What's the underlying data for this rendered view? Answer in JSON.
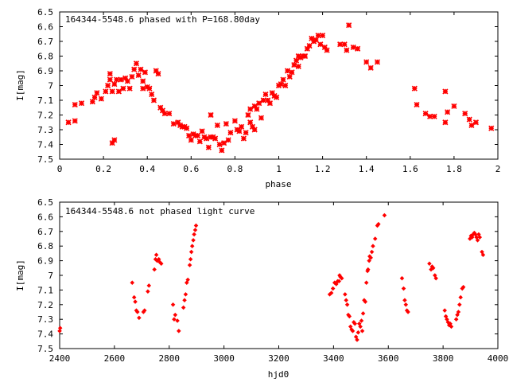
{
  "chart_data": [
    {
      "type": "scatter",
      "title": "164344-5548.6 phased with P=168.80day",
      "xlabel": "phase",
      "ylabel": "I[mag]",
      "xlim": [
        0,
        2
      ],
      "ylim": [
        7.5,
        6.5
      ],
      "y_inverted": true,
      "xticks": [
        "0",
        "0.2",
        "0.4",
        "0.6",
        "0.8",
        "1",
        "1.2",
        "1.4",
        "1.6",
        "1.8",
        "2"
      ],
      "yticks": [
        "6.5",
        "6.6",
        "6.7",
        "6.8",
        "6.9",
        "7",
        "7.1",
        "7.2",
        "7.3",
        "7.4",
        "7.5"
      ],
      "marker": "star",
      "color": "#ff0000",
      "points": [
        [
          0.04,
          7.25
        ],
        [
          0.07,
          7.13
        ],
        [
          0.07,
          7.24
        ],
        [
          0.1,
          7.12
        ],
        [
          0.15,
          7.11
        ],
        [
          0.16,
          7.08
        ],
        [
          0.17,
          7.05
        ],
        [
          0.19,
          7.09
        ],
        [
          0.21,
          7.04
        ],
        [
          0.22,
          7.0
        ],
        [
          0.23,
          6.92
        ],
        [
          0.23,
          6.96
        ],
        [
          0.24,
          7.04
        ],
        [
          0.24,
          7.39
        ],
        [
          0.25,
          7.37
        ],
        [
          0.25,
          6.99
        ],
        [
          0.26,
          6.96
        ],
        [
          0.27,
          7.04
        ],
        [
          0.28,
          6.96
        ],
        [
          0.29,
          7.02
        ],
        [
          0.3,
          6.95
        ],
        [
          0.31,
          6.97
        ],
        [
          0.32,
          7.02
        ],
        [
          0.33,
          6.94
        ],
        [
          0.34,
          6.89
        ],
        [
          0.35,
          6.85
        ],
        [
          0.36,
          6.93
        ],
        [
          0.37,
          6.89
        ],
        [
          0.38,
          6.97
        ],
        [
          0.38,
          7.02
        ],
        [
          0.39,
          6.91
        ],
        [
          0.4,
          7.01
        ],
        [
          0.41,
          7.02
        ],
        [
          0.42,
          7.06
        ],
        [
          0.43,
          7.1
        ],
        [
          0.44,
          6.9
        ],
        [
          0.45,
          6.92
        ],
        [
          0.46,
          7.15
        ],
        [
          0.47,
          7.17
        ],
        [
          0.48,
          7.19
        ],
        [
          0.5,
          7.19
        ],
        [
          0.52,
          7.26
        ],
        [
          0.54,
          7.25
        ],
        [
          0.55,
          7.27
        ],
        [
          0.56,
          7.28
        ],
        [
          0.57,
          7.28
        ],
        [
          0.58,
          7.29
        ],
        [
          0.59,
          7.34
        ],
        [
          0.6,
          7.37
        ],
        [
          0.61,
          7.33
        ],
        [
          0.62,
          7.34
        ],
        [
          0.63,
          7.34
        ],
        [
          0.64,
          7.38
        ],
        [
          0.65,
          7.31
        ],
        [
          0.66,
          7.35
        ],
        [
          0.67,
          7.36
        ],
        [
          0.68,
          7.42
        ],
        [
          0.69,
          7.35
        ],
        [
          0.69,
          7.2
        ],
        [
          0.7,
          7.35
        ],
        [
          0.71,
          7.36
        ],
        [
          0.72,
          7.27
        ],
        [
          0.73,
          7.4
        ],
        [
          0.74,
          7.44
        ],
        [
          0.75,
          7.39
        ],
        [
          0.76,
          7.26
        ],
        [
          0.77,
          7.37
        ],
        [
          0.78,
          7.32
        ],
        [
          0.8,
          7.24
        ],
        [
          0.81,
          7.3
        ],
        [
          0.82,
          7.31
        ],
        [
          0.83,
          7.28
        ],
        [
          0.84,
          7.36
        ],
        [
          0.85,
          7.32
        ],
        [
          0.86,
          7.2
        ],
        [
          0.87,
          7.25
        ],
        [
          0.87,
          7.16
        ],
        [
          0.88,
          7.28
        ],
        [
          0.89,
          7.3
        ],
        [
          0.89,
          7.14
        ],
        [
          0.9,
          7.16
        ],
        [
          0.91,
          7.12
        ],
        [
          0.92,
          7.22
        ],
        [
          0.93,
          7.1
        ],
        [
          0.94,
          7.06
        ],
        [
          0.95,
          7.1
        ],
        [
          0.96,
          7.12
        ],
        [
          0.97,
          7.05
        ],
        [
          0.98,
          7.07
        ],
        [
          0.99,
          7.08
        ],
        [
          1.0,
          7.0
        ],
        [
          1.01,
          6.99
        ],
        [
          1.02,
          6.96
        ],
        [
          1.03,
          7.0
        ],
        [
          1.04,
          6.9
        ],
        [
          1.05,
          6.94
        ],
        [
          1.06,
          6.91
        ],
        [
          1.07,
          6.86
        ],
        [
          1.08,
          6.83
        ],
        [
          1.09,
          6.87
        ],
        [
          1.09,
          6.8
        ],
        [
          1.1,
          6.81
        ],
        [
          1.11,
          6.8
        ],
        [
          1.12,
          6.8
        ],
        [
          1.13,
          6.75
        ],
        [
          1.14,
          6.73
        ],
        [
          1.15,
          6.68
        ],
        [
          1.16,
          6.7
        ],
        [
          1.17,
          6.69
        ],
        [
          1.18,
          6.66
        ],
        [
          1.19,
          6.72
        ],
        [
          1.2,
          6.66
        ],
        [
          1.21,
          6.74
        ],
        [
          1.22,
          6.76
        ],
        [
          1.28,
          6.72
        ],
        [
          1.3,
          6.72
        ],
        [
          1.31,
          6.76
        ],
        [
          1.32,
          6.59
        ],
        [
          1.34,
          6.74
        ],
        [
          1.36,
          6.75
        ],
        [
          1.4,
          6.84
        ],
        [
          1.42,
          6.88
        ],
        [
          1.45,
          6.84
        ],
        [
          1.62,
          7.02
        ],
        [
          1.63,
          7.13
        ],
        [
          1.67,
          7.19
        ],
        [
          1.69,
          7.21
        ],
        [
          1.71,
          7.21
        ],
        [
          1.76,
          7.04
        ],
        [
          1.76,
          7.25
        ],
        [
          1.77,
          7.18
        ],
        [
          1.8,
          7.14
        ],
        [
          1.85,
          7.19
        ],
        [
          1.87,
          7.23
        ],
        [
          1.88,
          7.27
        ],
        [
          1.9,
          7.25
        ],
        [
          1.97,
          7.29
        ]
      ]
    },
    {
      "type": "scatter",
      "title": "164344-5548.6 not phased light curve",
      "xlabel": "hjd0",
      "ylabel": "I[mag]",
      "xlim": [
        2400,
        4000
      ],
      "ylim": [
        7.5,
        6.5
      ],
      "y_inverted": true,
      "xticks": [
        "2400",
        "2600",
        "2800",
        "3000",
        "3200",
        "3400",
        "3600",
        "3800",
        "4000"
      ],
      "yticks": [
        "6.5",
        "6.6",
        "6.7",
        "6.8",
        "6.9",
        "7",
        "7.1",
        "7.2",
        "7.3",
        "7.4",
        "7.5"
      ],
      "marker": "diamond",
      "color": "#ff0000",
      "points": [
        [
          2400,
          7.38
        ],
        [
          2402,
          7.36
        ],
        [
          2665,
          7.05
        ],
        [
          2672,
          7.15
        ],
        [
          2676,
          7.18
        ],
        [
          2680,
          7.24
        ],
        [
          2684,
          7.25
        ],
        [
          2690,
          7.29
        ],
        [
          2706,
          7.25
        ],
        [
          2710,
          7.24
        ],
        [
          2722,
          7.11
        ],
        [
          2726,
          7.07
        ],
        [
          2746,
          6.96
        ],
        [
          2750,
          6.89
        ],
        [
          2753,
          6.86
        ],
        [
          2756,
          6.9
        ],
        [
          2762,
          6.89
        ],
        [
          2766,
          6.91
        ],
        [
          2771,
          6.92
        ],
        [
          2814,
          7.2
        ],
        [
          2818,
          7.3
        ],
        [
          2822,
          7.27
        ],
        [
          2830,
          7.31
        ],
        [
          2835,
          7.38
        ],
        [
          2852,
          7.22
        ],
        [
          2856,
          7.17
        ],
        [
          2860,
          7.13
        ],
        [
          2864,
          7.05
        ],
        [
          2868,
          7.03
        ],
        [
          2875,
          6.93
        ],
        [
          2878,
          6.89
        ],
        [
          2881,
          6.84
        ],
        [
          2884,
          6.8
        ],
        [
          2888,
          6.76
        ],
        [
          2891,
          6.72
        ],
        [
          2895,
          6.69
        ],
        [
          2898,
          6.66
        ],
        [
          3386,
          7.13
        ],
        [
          3392,
          7.12
        ],
        [
          3398,
          7.09
        ],
        [
          3404,
          7.05
        ],
        [
          3410,
          7.06
        ],
        [
          3415,
          7.04
        ],
        [
          3420,
          7.04
        ],
        [
          3422,
          7.0
        ],
        [
          3425,
          7.01
        ],
        [
          3430,
          7.02
        ],
        [
          3442,
          7.13
        ],
        [
          3446,
          7.17
        ],
        [
          3450,
          7.2
        ],
        [
          3454,
          7.27
        ],
        [
          3458,
          7.28
        ],
        [
          3462,
          7.35
        ],
        [
          3466,
          7.37
        ],
        [
          3470,
          7.38
        ],
        [
          3474,
          7.32
        ],
        [
          3478,
          7.33
        ],
        [
          3482,
          7.42
        ],
        [
          3486,
          7.44
        ],
        [
          3490,
          7.39
        ],
        [
          3494,
          7.33
        ],
        [
          3498,
          7.35
        ],
        [
          3502,
          7.31
        ],
        [
          3505,
          7.38
        ],
        [
          3508,
          7.26
        ],
        [
          3512,
          7.17
        ],
        [
          3516,
          7.18
        ],
        [
          3520,
          7.05
        ],
        [
          3524,
          6.97
        ],
        [
          3526,
          6.96
        ],
        [
          3530,
          6.9
        ],
        [
          3532,
          6.87
        ],
        [
          3536,
          6.88
        ],
        [
          3540,
          6.84
        ],
        [
          3544,
          6.8
        ],
        [
          3552,
          6.75
        ],
        [
          3560,
          6.66
        ],
        [
          3564,
          6.65
        ],
        [
          3586,
          6.59
        ],
        [
          3650,
          7.02
        ],
        [
          3656,
          7.09
        ],
        [
          3660,
          7.17
        ],
        [
          3664,
          7.2
        ],
        [
          3668,
          7.24
        ],
        [
          3672,
          7.25
        ],
        [
          3750,
          6.92
        ],
        [
          3756,
          6.96
        ],
        [
          3760,
          6.94
        ],
        [
          3764,
          6.95
        ],
        [
          3770,
          7.0
        ],
        [
          3774,
          7.02
        ],
        [
          3806,
          7.24
        ],
        [
          3810,
          7.28
        ],
        [
          3814,
          7.3
        ],
        [
          3818,
          7.32
        ],
        [
          3822,
          7.34
        ],
        [
          3826,
          7.33
        ],
        [
          3830,
          7.35
        ],
        [
          3848,
          7.3
        ],
        [
          3852,
          7.27
        ],
        [
          3856,
          7.25
        ],
        [
          3860,
          7.2
        ],
        [
          3864,
          7.15
        ],
        [
          3870,
          7.09
        ],
        [
          3874,
          7.08
        ],
        [
          3898,
          6.75
        ],
        [
          3902,
          6.73
        ],
        [
          3906,
          6.74
        ],
        [
          3910,
          6.72
        ],
        [
          3914,
          6.71
        ],
        [
          3918,
          6.72
        ],
        [
          3922,
          6.74
        ],
        [
          3926,
          6.76
        ],
        [
          3930,
          6.72
        ],
        [
          3934,
          6.74
        ],
        [
          3942,
          6.84
        ],
        [
          3946,
          6.86
        ]
      ]
    }
  ]
}
